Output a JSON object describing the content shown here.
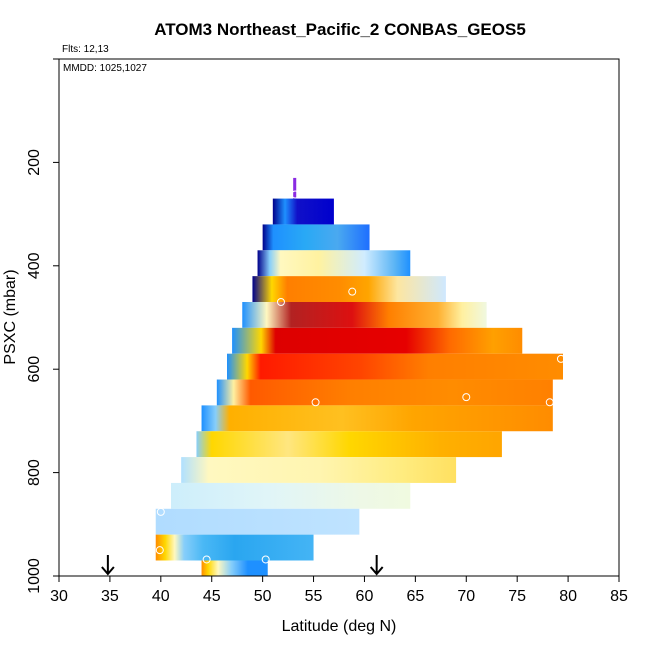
{
  "chart_data": {
    "type": "heatmap",
    "title": "ATOM3 Northeast_Pacific_2 CONBAS_GEOS5",
    "flights_label": "Flts: 12,13",
    "mmdd_label": "MMDD: 1025,1027",
    "xlabel": "Latitude (deg N)",
    "ylabel": "PSXC (mbar)",
    "xlim": [
      30,
      85
    ],
    "ylim": [
      1000,
      0
    ],
    "xticks": [
      "30",
      "35",
      "40",
      "45",
      "50",
      "55",
      "60",
      "65",
      "70",
      "75",
      "80",
      "85"
    ],
    "yticks": [
      "200",
      "400",
      "600",
      "800",
      "1000"
    ],
    "arrow_latitudes": [
      34.8,
      61.2
    ],
    "layers": [
      {
        "p_top": 230,
        "p_bot": 270,
        "lat_min": 53.0,
        "lat_max": 53.3,
        "stops": [
          [
            0,
            "#8a2be2"
          ],
          [
            1,
            "#8a2be2"
          ]
        ]
      },
      {
        "p_top": 270,
        "p_bot": 320,
        "lat_min": 51.0,
        "lat_max": 57.0,
        "stops": [
          [
            0,
            "#00008b"
          ],
          [
            0.2,
            "#1e90ff"
          ],
          [
            0.4,
            "#1010c8"
          ],
          [
            1,
            "#0000cd"
          ]
        ]
      },
      {
        "p_top": 320,
        "p_bot": 370,
        "lat_min": 50.0,
        "lat_max": 60.5,
        "stops": [
          [
            0,
            "#00008b"
          ],
          [
            0.1,
            "#1e90ff"
          ],
          [
            0.4,
            "#29a9f5"
          ],
          [
            0.7,
            "#4aa9f0"
          ],
          [
            1,
            "#1e6fff"
          ]
        ]
      },
      {
        "p_top": 370,
        "p_bot": 420,
        "lat_min": 49.5,
        "lat_max": 64.5,
        "stops": [
          [
            0,
            "#00008b"
          ],
          [
            0.08,
            "#87cefa"
          ],
          [
            0.15,
            "#fff8c0"
          ],
          [
            0.4,
            "#fff2a0"
          ],
          [
            0.7,
            "#d0ecff"
          ],
          [
            0.9,
            "#5ab4f5"
          ],
          [
            1,
            "#1e90ff"
          ]
        ]
      },
      {
        "p_top": 420,
        "p_bot": 470,
        "lat_min": 49.0,
        "lat_max": 68.0,
        "stops": [
          [
            0,
            "#00008b"
          ],
          [
            0.1,
            "#ffd700"
          ],
          [
            0.18,
            "#ff7f00"
          ],
          [
            0.45,
            "#ff8c00"
          ],
          [
            0.6,
            "#ffa500"
          ],
          [
            0.75,
            "#fde6a0"
          ],
          [
            1,
            "#cfe8ff"
          ]
        ]
      },
      {
        "p_top": 470,
        "p_bot": 520,
        "lat_min": 48.0,
        "lat_max": 72.0,
        "stops": [
          [
            0,
            "#1e90ff"
          ],
          [
            0.1,
            "#fff8c0"
          ],
          [
            0.2,
            "#b22222"
          ],
          [
            0.45,
            "#dd1010"
          ],
          [
            0.6,
            "#ff7f00"
          ],
          [
            0.8,
            "#ffb030"
          ],
          [
            0.9,
            "#fff0a0"
          ],
          [
            1,
            "#f0f8e0"
          ]
        ]
      },
      {
        "p_top": 520,
        "p_bot": 570,
        "lat_min": 47.0,
        "lat_max": 75.5,
        "stops": [
          [
            0,
            "#1e90ff"
          ],
          [
            0.1,
            "#ffd700"
          ],
          [
            0.15,
            "#dd0000"
          ],
          [
            0.6,
            "#e60000"
          ],
          [
            0.75,
            "#ff6a00"
          ],
          [
            0.9,
            "#ffa000"
          ],
          [
            1,
            "#ff8c00"
          ]
        ]
      },
      {
        "p_top": 570,
        "p_bot": 620,
        "lat_min": 46.5,
        "lat_max": 79.5,
        "stops": [
          [
            0,
            "#1e90ff"
          ],
          [
            0.06,
            "#ffd700"
          ],
          [
            0.1,
            "#ff1a00"
          ],
          [
            0.4,
            "#ff4500"
          ],
          [
            0.6,
            "#ff7f00"
          ],
          [
            1,
            "#ff8c00"
          ]
        ]
      },
      {
        "p_top": 620,
        "p_bot": 670,
        "lat_min": 45.5,
        "lat_max": 78.5,
        "stops": [
          [
            0,
            "#1e90ff"
          ],
          [
            0.05,
            "#fff0a0"
          ],
          [
            0.1,
            "#ff5a00"
          ],
          [
            0.4,
            "#ff7f00"
          ],
          [
            0.7,
            "#ff8c00"
          ],
          [
            1,
            "#ff8000"
          ]
        ]
      },
      {
        "p_top": 670,
        "p_bot": 720,
        "lat_min": 44.0,
        "lat_max": 78.5,
        "stops": [
          [
            0,
            "#1e90ff"
          ],
          [
            0.04,
            "#87cefa"
          ],
          [
            0.08,
            "#ffb000"
          ],
          [
            0.4,
            "#ffc020"
          ],
          [
            0.6,
            "#ffa500"
          ],
          [
            1,
            "#ff8c00"
          ]
        ]
      },
      {
        "p_top": 720,
        "p_bot": 770,
        "lat_min": 43.5,
        "lat_max": 73.5,
        "stops": [
          [
            0,
            "#87cefa"
          ],
          [
            0.05,
            "#ffd700"
          ],
          [
            0.3,
            "#ffe680"
          ],
          [
            0.5,
            "#ffd700"
          ],
          [
            0.8,
            "#ffb000"
          ],
          [
            1,
            "#ffa500"
          ]
        ]
      },
      {
        "p_top": 770,
        "p_bot": 820,
        "lat_min": 42.0,
        "lat_max": 69.0,
        "stops": [
          [
            0,
            "#b0e0ff"
          ],
          [
            0.1,
            "#fff8c0"
          ],
          [
            0.5,
            "#fff5b0"
          ],
          [
            0.8,
            "#ffec80"
          ],
          [
            1,
            "#ffe060"
          ]
        ]
      },
      {
        "p_top": 820,
        "p_bot": 870,
        "lat_min": 41.0,
        "lat_max": 64.5,
        "stops": [
          [
            0,
            "#cdeefb"
          ],
          [
            0.4,
            "#e0f5f8"
          ],
          [
            0.8,
            "#eef8e6"
          ],
          [
            1,
            "#f0fae0"
          ]
        ]
      },
      {
        "p_top": 870,
        "p_bot": 920,
        "lat_min": 39.5,
        "lat_max": 59.5,
        "stops": [
          [
            0,
            "#b0dcff"
          ],
          [
            1,
            "#bfe3ff"
          ]
        ]
      },
      {
        "p_top": 920,
        "p_bot": 970,
        "lat_min": 39.5,
        "lat_max": 55.0,
        "stops": [
          [
            0,
            "#ff8c00"
          ],
          [
            0.06,
            "#ffd700"
          ],
          [
            0.12,
            "#fff8c0"
          ],
          [
            0.18,
            "#87cefa"
          ],
          [
            0.3,
            "#4ab8f5"
          ],
          [
            0.5,
            "#2aa6f0"
          ],
          [
            1,
            "#44b4f5"
          ]
        ]
      },
      {
        "p_top": 970,
        "p_bot": 1000,
        "lat_min": 44.0,
        "lat_max": 50.5,
        "stops": [
          [
            0,
            "#ff8c00"
          ],
          [
            0.1,
            "#ffd700"
          ],
          [
            0.25,
            "#fff8c0"
          ],
          [
            0.45,
            "#87cefa"
          ],
          [
            0.7,
            "#1e90ff"
          ],
          [
            1,
            "#1e90ff"
          ]
        ]
      }
    ],
    "markers": [
      {
        "lat": 53.2,
        "p": 262
      },
      {
        "lat": 51.8,
        "p": 470
      },
      {
        "lat": 58.8,
        "p": 450
      },
      {
        "lat": 79.3,
        "p": 580
      },
      {
        "lat": 55.2,
        "p": 664
      },
      {
        "lat": 70.0,
        "p": 654
      },
      {
        "lat": 78.2,
        "p": 664
      },
      {
        "lat": 40.0,
        "p": 876
      },
      {
        "lat": 39.9,
        "p": 950
      },
      {
        "lat": 44.5,
        "p": 968
      },
      {
        "lat": 50.3,
        "p": 968
      }
    ]
  }
}
